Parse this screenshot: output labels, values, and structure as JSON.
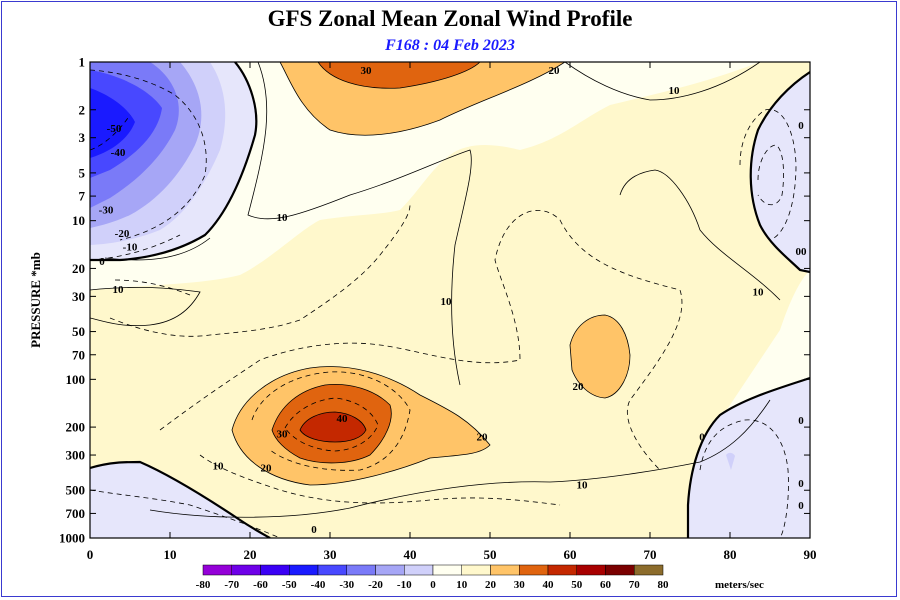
{
  "chart_data": {
    "type": "contour",
    "title": "GFS Zonal Mean Zonal Wind Profile",
    "subtitle": "F168 : 04 Feb 2023",
    "xlabel": "",
    "ylabel": "PRESSURE *mb",
    "x_ticks": [
      0,
      10,
      20,
      30,
      40,
      50,
      60,
      70,
      80,
      90
    ],
    "xlim": [
      0,
      90
    ],
    "y_scale": "log",
    "y_ticks": [
      1,
      2,
      3,
      5,
      7,
      10,
      20,
      30,
      50,
      70,
      100,
      200,
      300,
      500,
      700,
      1000
    ],
    "ylim": [
      1000,
      1
    ],
    "contour_labels": [
      {
        "lat": 3,
        "p": 2.6,
        "value": "-50"
      },
      {
        "lat": 3.5,
        "p": 3.7,
        "value": "-40"
      },
      {
        "lat": 2,
        "p": 8.5,
        "value": "-30"
      },
      {
        "lat": 4,
        "p": 12,
        "value": "-20"
      },
      {
        "lat": 5,
        "p": 14.5,
        "value": "-10"
      },
      {
        "lat": 1.5,
        "p": 18,
        "value": "0"
      },
      {
        "lat": 3.5,
        "p": 27,
        "value": "10"
      },
      {
        "lat": 24,
        "p": 9.5,
        "value": "10"
      },
      {
        "lat": 34.5,
        "p": 1.1,
        "value": "30"
      },
      {
        "lat": 58,
        "p": 1.1,
        "value": "20"
      },
      {
        "lat": 73,
        "p": 1.5,
        "value": "10"
      },
      {
        "lat": 90,
        "p": 2.5,
        "value": "0"
      },
      {
        "lat": 90,
        "p": 15.5,
        "value": "00"
      },
      {
        "lat": 83.5,
        "p": 28,
        "value": "10"
      },
      {
        "lat": 44.5,
        "p": 32,
        "value": "10"
      },
      {
        "lat": 61,
        "p": 110,
        "value": "20"
      },
      {
        "lat": 31.5,
        "p": 175,
        "value": "40"
      },
      {
        "lat": 24,
        "p": 220,
        "value": "30"
      },
      {
        "lat": 49,
        "p": 230,
        "value": "20"
      },
      {
        "lat": 22,
        "p": 360,
        "value": "20"
      },
      {
        "lat": 16,
        "p": 350,
        "value": "10"
      },
      {
        "lat": 61.5,
        "p": 460,
        "value": "10"
      },
      {
        "lat": 76.5,
        "p": 230,
        "value": "0"
      },
      {
        "lat": 90,
        "p": 180,
        "value": "0"
      },
      {
        "lat": 90,
        "p": 450,
        "value": "0"
      },
      {
        "lat": 90,
        "p": 620,
        "value": "0"
      },
      {
        "lat": 28,
        "p": 880,
        "value": "0"
      }
    ],
    "legend": {
      "unit": "meters/sec",
      "levels": [
        -80,
        -70,
        -60,
        -50,
        -40,
        -30,
        -20,
        -10,
        0,
        10,
        20,
        30,
        40,
        50,
        60,
        70,
        80
      ],
      "colors": [
        "#9400d8",
        "#6e00e8",
        "#3a00f5",
        "#1a1aff",
        "#4848ff",
        "#7a7af8",
        "#a6a6f6",
        "#d0d0fa",
        "#e6e6fb",
        "#fffff0",
        "#fff8cc",
        "#ffc468",
        "#e0640f",
        "#c42800",
        "#a80000",
        "#7a0000",
        "#8c6c2c"
      ]
    },
    "fill_colors": {
      "neg10": "#e6e6fb",
      "neg20": "#d0d0fa",
      "neg30": "#a6a6f6",
      "neg40": "#7a7af8",
      "neg50": "#4848ff",
      "neg60": "#1a1aff",
      "pos0": "#fffff0",
      "pos10": "#fff8cc",
      "pos20": "#ffc468",
      "pos30": "#e0640f",
      "pos40": "#c42800"
    }
  }
}
